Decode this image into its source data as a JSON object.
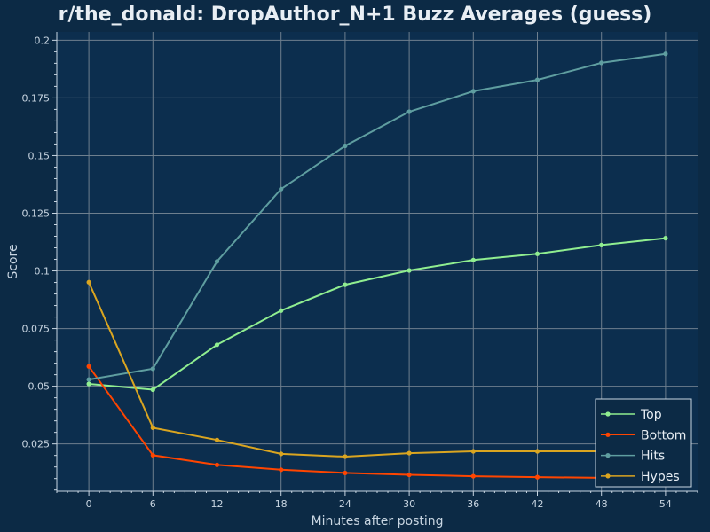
{
  "chart_data": {
    "type": "line",
    "title": "r/the_donald: DropAuthor_N+1 Buzz Averages (guess)",
    "xlabel": "Minutes after posting",
    "ylabel": "Score",
    "x": [
      0,
      6,
      12,
      18,
      24,
      30,
      36,
      42,
      48,
      54
    ],
    "xlim": [
      -3,
      57
    ],
    "ylim": [
      0.0045,
      0.2036
    ],
    "xticks": [
      0,
      6,
      12,
      18,
      24,
      30,
      36,
      42,
      48,
      54
    ],
    "yticks": [
      0.025,
      0.05,
      0.075,
      0.1,
      0.125,
      0.15,
      0.175,
      0.2
    ],
    "ytick_labels": [
      "0.025",
      "0.05",
      "0.075",
      "0.1",
      "0.125",
      "0.15",
      "0.175",
      "0.2"
    ],
    "grid": true,
    "legend_position": "bottom-right",
    "series": [
      {
        "name": "Top",
        "color": "#90ee90",
        "values": [
          0.051,
          0.0485,
          0.068,
          0.0828,
          0.094,
          0.1002,
          0.1047,
          0.1074,
          0.1112,
          0.1142
        ]
      },
      {
        "name": "Bottom",
        "color": "#ff4500",
        "values": [
          0.0586,
          0.0201,
          0.0159,
          0.0138,
          0.0124,
          0.0116,
          0.011,
          0.0106,
          0.0103,
          0.0099
        ]
      },
      {
        "name": "Hits",
        "color": "#5f9ea0",
        "values": [
          0.0529,
          0.0576,
          0.1041,
          0.1355,
          0.1542,
          0.169,
          0.1779,
          0.1828,
          0.1902,
          0.1941
        ]
      },
      {
        "name": "Hypes",
        "color": "#daa520",
        "values": [
          0.0951,
          0.032,
          0.0267,
          0.0207,
          0.0195,
          0.021,
          0.0218,
          0.0218,
          0.0218,
          0.0218
        ]
      }
    ]
  }
}
